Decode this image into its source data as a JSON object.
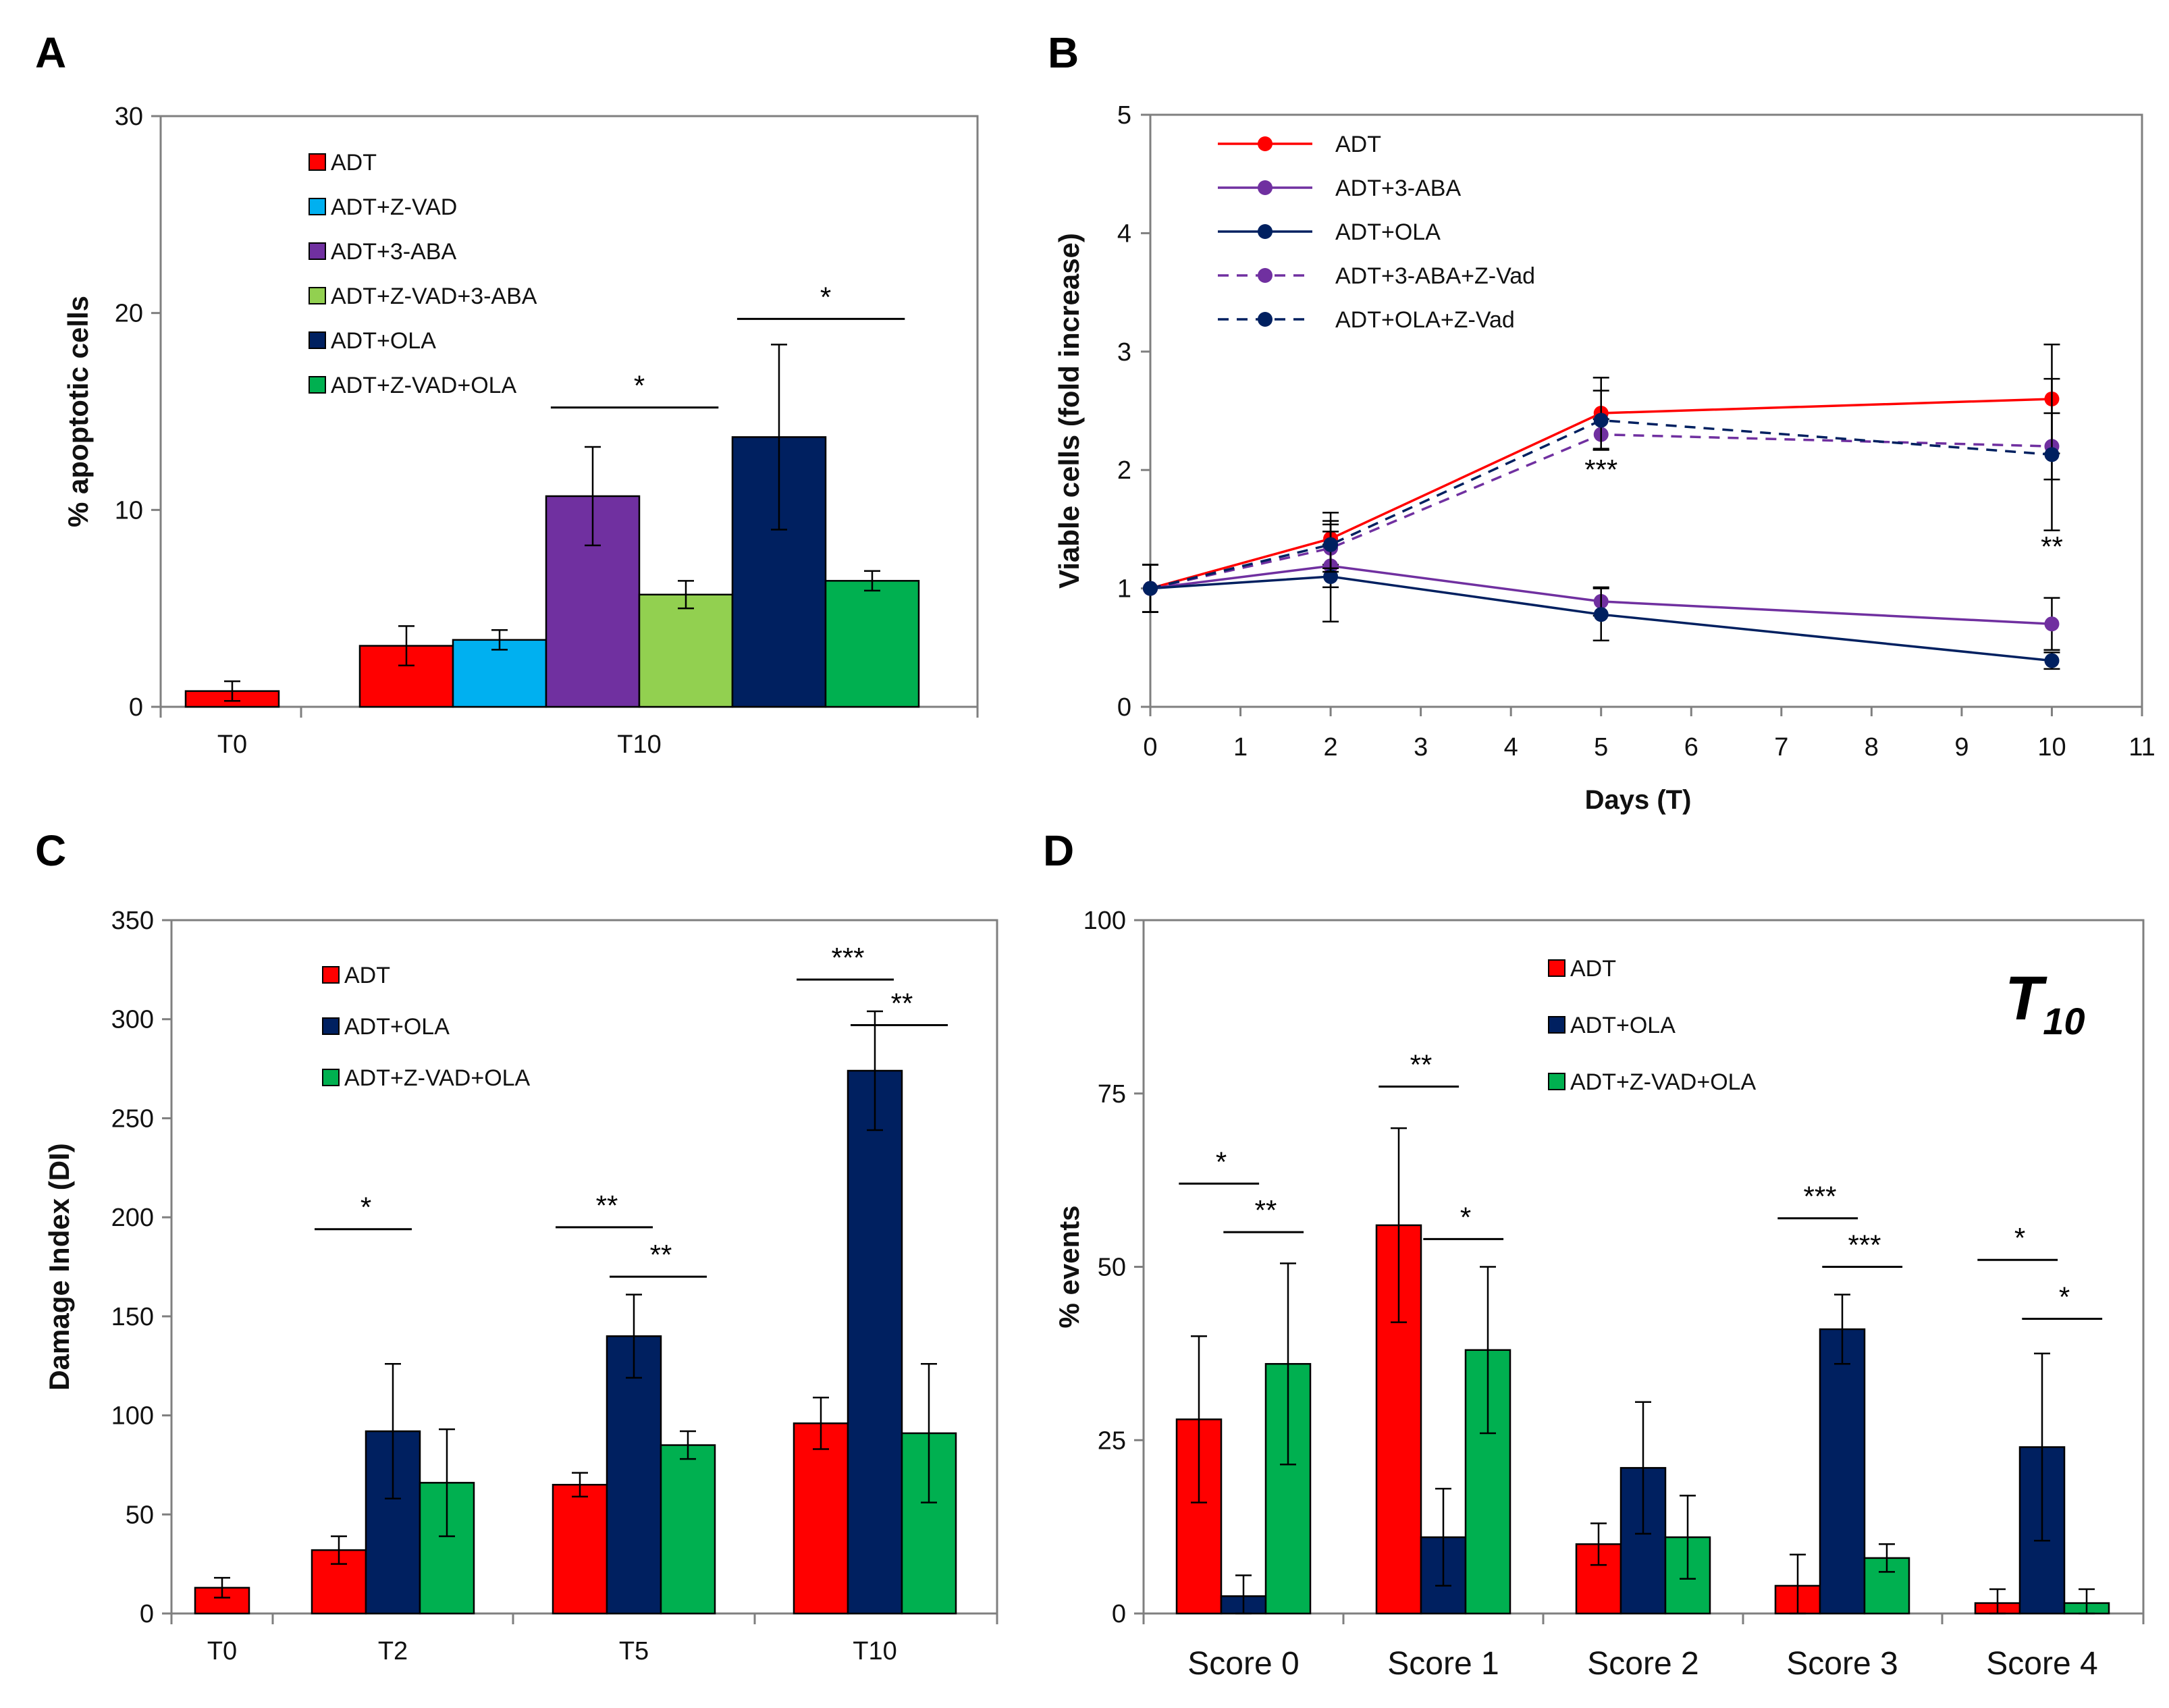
{
  "panels": {
    "A": "A",
    "B": "B",
    "C": "C",
    "D": "D"
  },
  "colors": {
    "ADT": "#ff0000",
    "ADT+Z-VAD": "#00b0f0",
    "ADT+3-ABA": "#7030a0",
    "ADT+Z-VAD+3-ABA": "#92d050",
    "ADT+OLA": "#002060",
    "ADT+Z-VAD+OLA": "#00b050",
    "line_ADT": "#ff0000",
    "line_3ABA": "#7030a0",
    "line_OLA": "#002060"
  },
  "chart_data": [
    {
      "panel": "A",
      "type": "bar",
      "ylabel": "% apoptotic cells",
      "ylim": [
        0,
        30
      ],
      "yticks": [
        "0",
        "10",
        "20",
        "30"
      ],
      "categories": [
        "T0",
        "T10"
      ],
      "legend": [
        "ADT",
        "ADT+Z-VAD",
        "ADT+3-ABA",
        "ADT+Z-VAD+3-ABA",
        "ADT+OLA",
        "ADT+Z-VAD+OLA"
      ],
      "groups": [
        {
          "category": "T0",
          "bars": [
            {
              "series": "ADT",
              "value": 0.8,
              "err": 0.5
            }
          ]
        },
        {
          "category": "T10",
          "bars": [
            {
              "series": "ADT",
              "value": 3.1,
              "err": 1.0
            },
            {
              "series": "ADT+Z-VAD",
              "value": 3.4,
              "err": 0.5
            },
            {
              "series": "ADT+3-ABA",
              "value": 10.7,
              "err": 2.5
            },
            {
              "series": "ADT+Z-VAD+3-ABA",
              "value": 5.7,
              "err": 0.7
            },
            {
              "series": "ADT+OLA",
              "value": 13.7,
              "err": 4.7
            },
            {
              "series": "ADT+Z-VAD+OLA",
              "value": 6.4,
              "err": 0.5
            }
          ]
        }
      ],
      "significance": [
        {
          "from": "ADT+3-ABA",
          "to": "ADT+Z-VAD+3-ABA",
          "group": "T10",
          "label": "*",
          "y": 15.2
        },
        {
          "from": "ADT+OLA",
          "to": "ADT+Z-VAD+OLA",
          "group": "T10",
          "label": "*",
          "y": 19.7
        }
      ]
    },
    {
      "panel": "B",
      "type": "line",
      "xlabel": "Days (T)",
      "ylabel": "Viable cells (fold increase)",
      "xlim": [
        0,
        11
      ],
      "ylim": [
        0,
        5
      ],
      "xticks": [
        "0",
        "1",
        "2",
        "3",
        "4",
        "5",
        "6",
        "7",
        "8",
        "9",
        "10",
        "11"
      ],
      "yticks": [
        "0",
        "1",
        "2",
        "3",
        "4",
        "5"
      ],
      "series": [
        {
          "name": "ADT",
          "color": "#ff0000",
          "dashed": false,
          "x": [
            0,
            2,
            5,
            10
          ],
          "y": [
            1.0,
            1.42,
            2.48,
            2.6
          ],
          "err": [
            0.2,
            0.22,
            0.3,
            0.46
          ]
        },
        {
          "name": "ADT+3-ABA",
          "color": "#7030a0",
          "dashed": false,
          "x": [
            0,
            2,
            5,
            10
          ],
          "y": [
            1.0,
            1.19,
            0.89,
            0.7
          ],
          "err": [
            0.2,
            0.18,
            0.12,
            0.22
          ]
        },
        {
          "name": "ADT+OLA",
          "color": "#002060",
          "dashed": false,
          "x": [
            0,
            2,
            5,
            10
          ],
          "y": [
            1.0,
            1.1,
            0.78,
            0.39
          ],
          "err": [
            0.2,
            0.38,
            0.22,
            0.07
          ]
        },
        {
          "name": "ADT+3-ABA+Z-Vad",
          "color": "#7030a0",
          "dashed": true,
          "x": [
            0,
            2,
            5,
            10
          ],
          "y": [
            1.0,
            1.34,
            2.3,
            2.2
          ],
          "err": [
            0.2,
            0.2,
            0.13,
            0.28
          ]
        },
        {
          "name": "ADT+OLA+Z-Vad",
          "color": "#002060",
          "dashed": true,
          "x": [
            0,
            2,
            5,
            10
          ],
          "y": [
            1.0,
            1.37,
            2.42,
            2.13
          ],
          "err": [
            0.2,
            0.2,
            0.25,
            0.64
          ]
        }
      ],
      "annotations": [
        {
          "x": 5,
          "y": 2.0,
          "label": "***"
        },
        {
          "x": 10,
          "y": 1.35,
          "label": "**"
        }
      ]
    },
    {
      "panel": "C",
      "type": "bar",
      "ylabel": "Damage Index (DI)",
      "ylim": [
        0,
        350
      ],
      "yticks": [
        "0",
        "50",
        "100",
        "150",
        "200",
        "250",
        "300",
        "350"
      ],
      "categories": [
        "T0",
        "T2",
        "T5",
        "T10"
      ],
      "legend": [
        "ADT",
        "ADT+OLA",
        "ADT+Z-VAD+OLA"
      ],
      "groups": [
        {
          "category": "T0",
          "bars": [
            {
              "series": "ADT",
              "value": 13,
              "err": 5
            }
          ]
        },
        {
          "category": "T2",
          "bars": [
            {
              "series": "ADT",
              "value": 32,
              "err": 7
            },
            {
              "series": "ADT+OLA",
              "value": 92,
              "err": 34
            },
            {
              "series": "ADT+Z-VAD+OLA",
              "value": 66,
              "err": 27
            }
          ]
        },
        {
          "category": "T5",
          "bars": [
            {
              "series": "ADT",
              "value": 65,
              "err": 6
            },
            {
              "series": "ADT+OLA",
              "value": 140,
              "err": 21
            },
            {
              "series": "ADT+Z-VAD+OLA",
              "value": 85,
              "err": 7
            }
          ]
        },
        {
          "category": "T10",
          "bars": [
            {
              "series": "ADT",
              "value": 96,
              "err": 13
            },
            {
              "series": "ADT+OLA",
              "value": 274,
              "err": 30
            },
            {
              "series": "ADT+Z-VAD+OLA",
              "value": 91,
              "err": 35
            }
          ]
        }
      ],
      "significance": [
        {
          "group": "T2",
          "from": "ADT",
          "to": "ADT+OLA",
          "label": "*",
          "y": 194
        },
        {
          "group": "T5",
          "from": "ADT",
          "to": "ADT+OLA",
          "label": "**",
          "y": 195
        },
        {
          "group": "T5",
          "from": "ADT+OLA",
          "to": "ADT+Z-VAD+OLA",
          "label": "**",
          "y": 170
        },
        {
          "group": "T10",
          "from": "ADT",
          "to": "ADT+OLA",
          "label": "***",
          "y": 320
        },
        {
          "group": "T10",
          "from": "ADT+OLA",
          "to": "ADT+Z-VAD+OLA",
          "label": "**",
          "y": 297
        }
      ]
    },
    {
      "panel": "D",
      "type": "bar",
      "title": "T10",
      "title_main": "T",
      "title_sub": "10",
      "ylabel": "% events",
      "ylim": [
        0,
        100
      ],
      "yticks": [
        "0",
        "25",
        "50",
        "75",
        "100"
      ],
      "categories": [
        "Score 0",
        "Score 1",
        "Score 2",
        "Score 3",
        "Score 4"
      ],
      "legend": [
        "ADT",
        "ADT+OLA",
        "ADT+Z-VAD+OLA"
      ],
      "groups": [
        {
          "category": "Score 0",
          "bars": [
            {
              "series": "ADT",
              "value": 28,
              "err": 12
            },
            {
              "series": "ADT+OLA",
              "value": 2.5,
              "err": 3
            },
            {
              "series": "ADT+Z-VAD+OLA",
              "value": 36,
              "err": 14.5
            }
          ]
        },
        {
          "category": "Score 1",
          "bars": [
            {
              "series": "ADT",
              "value": 56,
              "err": 14
            },
            {
              "series": "ADT+OLA",
              "value": 11,
              "err": 7
            },
            {
              "series": "ADT+Z-VAD+OLA",
              "value": 38,
              "err": 12
            }
          ]
        },
        {
          "category": "Score 2",
          "bars": [
            {
              "series": "ADT",
              "value": 10,
              "err": 3
            },
            {
              "series": "ADT+OLA",
              "value": 21,
              "err": 9.5
            },
            {
              "series": "ADT+Z-VAD+OLA",
              "value": 11,
              "err": 6
            }
          ]
        },
        {
          "category": "Score 3",
          "bars": [
            {
              "series": "ADT",
              "value": 4,
              "err": 4.5
            },
            {
              "series": "ADT+OLA",
              "value": 41,
              "err": 5
            },
            {
              "series": "ADT+Z-VAD+OLA",
              "value": 8,
              "err": 2
            }
          ]
        },
        {
          "category": "Score 4",
          "bars": [
            {
              "series": "ADT",
              "value": 1.5,
              "err": 2
            },
            {
              "series": "ADT+OLA",
              "value": 24,
              "err": 13.5
            },
            {
              "series": "ADT+Z-VAD+OLA",
              "value": 1.5,
              "err": 2
            }
          ]
        }
      ],
      "significance": [
        {
          "group": "Score 0",
          "from": "ADT",
          "to": "ADT+OLA",
          "label": "*",
          "y": 62
        },
        {
          "group": "Score 0",
          "from": "ADT+OLA",
          "to": "ADT+Z-VAD+OLA",
          "label": "**",
          "y": 55
        },
        {
          "group": "Score 1",
          "from": "ADT",
          "to": "ADT+OLA",
          "label": "**",
          "y": 76
        },
        {
          "group": "Score 1",
          "from": "ADT+OLA",
          "to": "ADT+Z-VAD+OLA",
          "label": "*",
          "y": 54
        },
        {
          "group": "Score 3",
          "from": "ADT",
          "to": "ADT+OLA",
          "label": "***",
          "y": 57
        },
        {
          "group": "Score 3",
          "from": "ADT+OLA",
          "to": "ADT+Z-VAD+OLA",
          "label": "***",
          "y": 50
        },
        {
          "group": "Score 4",
          "from": "ADT",
          "to": "ADT+OLA",
          "label": "*",
          "y": 51
        },
        {
          "group": "Score 4",
          "from": "ADT+OLA",
          "to": "ADT+Z-VAD+OLA",
          "label": "*",
          "y": 42.5
        }
      ]
    }
  ]
}
